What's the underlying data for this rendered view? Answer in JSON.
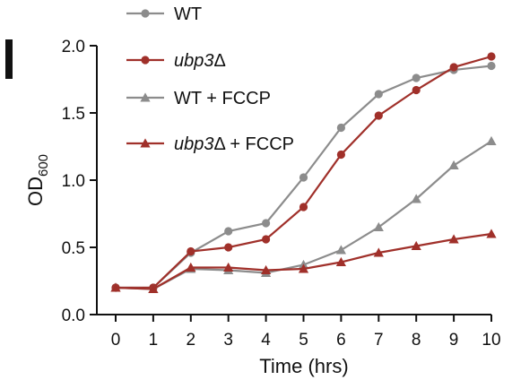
{
  "panel_label": "l",
  "chart_data": {
    "type": "line",
    "xlabel": "Time (hrs)",
    "ylabel": {
      "main": "OD",
      "sub": "600"
    },
    "x": [
      0,
      1,
      2,
      3,
      4,
      5,
      6,
      7,
      8,
      9,
      10
    ],
    "xticks": [
      "0",
      "1",
      "2",
      "3",
      "4",
      "5",
      "6",
      "7",
      "8",
      "9",
      "10"
    ],
    "yticks": [
      "0.0",
      "0.5",
      "1.0",
      "1.5",
      "2.0"
    ],
    "xlim": [
      0,
      10
    ],
    "ylim": [
      0,
      2.0
    ],
    "grid": false,
    "legend_position": "top-left",
    "series": [
      {
        "name": "WT",
        "name_italic": "",
        "name_rest": "",
        "color": "#8c8c8c",
        "marker": "circle",
        "values": [
          0.2,
          0.2,
          0.46,
          0.62,
          0.68,
          1.02,
          1.39,
          1.64,
          1.76,
          1.82,
          1.85
        ]
      },
      {
        "name": "",
        "name_italic": "ubp3",
        "name_rest": "Δ",
        "color": "#a0302a",
        "marker": "circle",
        "values": [
          0.2,
          0.2,
          0.47,
          0.5,
          0.56,
          0.8,
          1.19,
          1.48,
          1.67,
          1.84,
          1.92
        ]
      },
      {
        "name": "WT + FCCP",
        "name_italic": "",
        "name_rest": "",
        "color": "#8c8c8c",
        "marker": "triangle",
        "values": [
          0.2,
          0.19,
          0.34,
          0.33,
          0.31,
          0.37,
          0.48,
          0.65,
          0.86,
          1.11,
          1.29
        ]
      },
      {
        "name": "",
        "name_italic": "ubp3",
        "name_rest": "Δ + FCCP",
        "color": "#a0302a",
        "marker": "triangle",
        "values": [
          0.2,
          0.19,
          0.35,
          0.35,
          0.33,
          0.34,
          0.39,
          0.46,
          0.51,
          0.56,
          0.6
        ]
      }
    ]
  }
}
